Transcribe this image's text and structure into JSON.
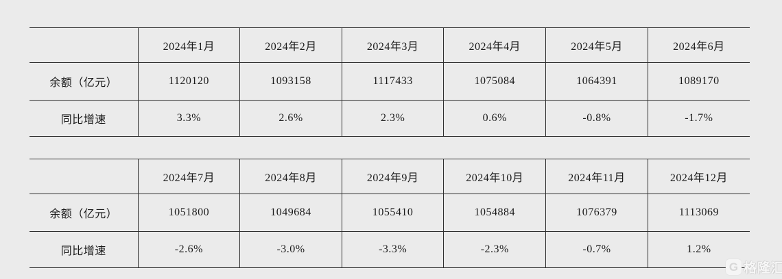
{
  "page": {
    "background_color": "#ebebeb",
    "table_border_color": "#2e2e2e",
    "text_color": "#1a1a1a"
  },
  "chart_data": [
    {
      "type": "table",
      "title": "",
      "columns": [
        "",
        "2024年1月",
        "2024年2月",
        "2024年3月",
        "2024年4月",
        "2024年5月",
        "2024年6月"
      ],
      "rows": [
        [
          "余额（亿元）",
          "1120120",
          "1093158",
          "1117433",
          "1075084",
          "1064391",
          "1089170"
        ],
        [
          "同比增速",
          "3.3%",
          "2.6%",
          "2.3%",
          "0.6%",
          "-0.8%",
          "-1.7%"
        ]
      ]
    },
    {
      "type": "table",
      "title": "",
      "columns": [
        "",
        "2024年7月",
        "2024年8月",
        "2024年9月",
        "2024年10月",
        "2024年11月",
        "2024年12月"
      ],
      "rows": [
        [
          "余额（亿元）",
          "1051800",
          "1049684",
          "1055410",
          "1054884",
          "1076379",
          "1113069"
        ],
        [
          "同比增速",
          "-2.6%",
          "-3.0%",
          "-3.3%",
          "-2.3%",
          "-0.7%",
          "1.2%"
        ]
      ]
    }
  ],
  "watermark": {
    "logo_letter": "G",
    "text": "格隆汇",
    "color": "#f7f7f7"
  }
}
